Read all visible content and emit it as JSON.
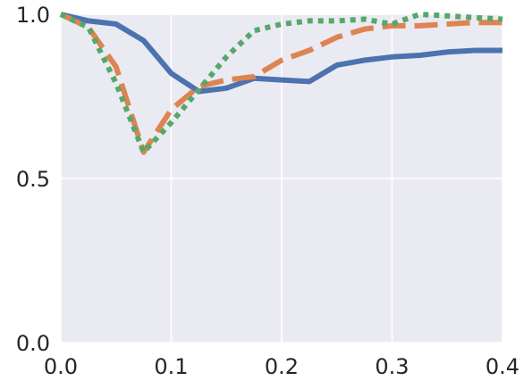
{
  "chart_data": {
    "type": "line",
    "xlim": [
      0.0,
      0.4
    ],
    "ylim": [
      0.0,
      1.0
    ],
    "xticks": [
      "0.0",
      "0.1",
      "0.2",
      "0.3",
      "0.4"
    ],
    "yticks": [
      "0.0",
      "0.5",
      "1.0"
    ],
    "grid": true,
    "legend": "none",
    "background_color": "#EAEAF2",
    "grid_color": "#FFFFFF",
    "series": [
      {
        "style": "solid",
        "color": "#4C72B0",
        "x": [
          0.0,
          0.025,
          0.05,
          0.075,
          0.1,
          0.125,
          0.15,
          0.175,
          0.2,
          0.225,
          0.25,
          0.275,
          0.3,
          0.325,
          0.35,
          0.375,
          0.4
        ],
        "y": [
          1.0,
          0.98,
          0.97,
          0.92,
          0.82,
          0.765,
          0.775,
          0.805,
          0.8,
          0.795,
          0.845,
          0.86,
          0.87,
          0.875,
          0.885,
          0.89,
          0.89
        ]
      },
      {
        "style": "dashed",
        "color": "#DD8452",
        "x": [
          0.0,
          0.025,
          0.05,
          0.075,
          0.1,
          0.125,
          0.15,
          0.175,
          0.2,
          0.225,
          0.25,
          0.275,
          0.3,
          0.325,
          0.35,
          0.375,
          0.4
        ],
        "y": [
          1.0,
          0.96,
          0.84,
          0.58,
          0.71,
          0.78,
          0.8,
          0.81,
          0.86,
          0.89,
          0.93,
          0.955,
          0.965,
          0.965,
          0.97,
          0.975,
          0.975
        ]
      },
      {
        "style": "dotted",
        "color": "#55A868",
        "x": [
          0.0,
          0.025,
          0.05,
          0.075,
          0.1,
          0.125,
          0.15,
          0.175,
          0.2,
          0.225,
          0.25,
          0.275,
          0.3,
          0.325,
          0.35,
          0.375,
          0.4
        ],
        "y": [
          1.0,
          0.96,
          0.79,
          0.58,
          0.67,
          0.77,
          0.87,
          0.95,
          0.97,
          0.98,
          0.98,
          0.985,
          0.97,
          1.0,
          0.995,
          0.99,
          0.985
        ]
      }
    ]
  }
}
